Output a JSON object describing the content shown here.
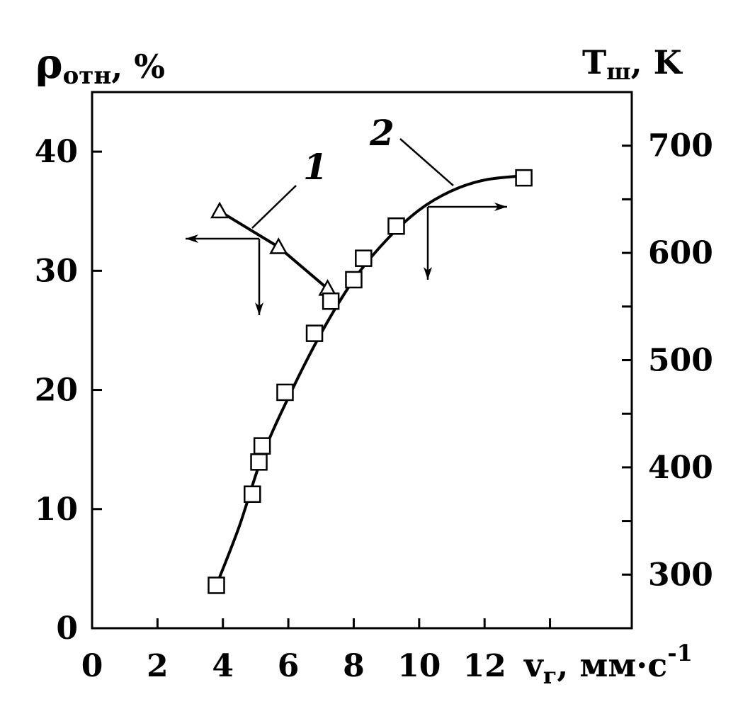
{
  "chart_data": {
    "type": "scatter",
    "left_axis": {
      "label_main": "ρ",
      "label_sub": "отн",
      "label_unit": ", %",
      "ticks": [
        0,
        10,
        20,
        30,
        40
      ],
      "tick_labels": [
        "0",
        "10",
        "20",
        "30",
        "40"
      ],
      "range": [
        0,
        45
      ]
    },
    "right_axis": {
      "label_main": "T",
      "label_sub": "ш",
      "label_unit": ", K",
      "ticks": [
        300,
        400,
        500,
        600,
        700
      ],
      "tick_labels": [
        "300",
        "400",
        "500",
        "600",
        "700"
      ],
      "minor_ticks": [
        350,
        450,
        550,
        650
      ],
      "range": [
        250,
        750
      ]
    },
    "x_axis": {
      "label_main": "v",
      "label_sub": "г",
      "label_unit": ", мм·с",
      "label_sup": "-1",
      "ticks": [
        0,
        2,
        4,
        6,
        8,
        10,
        12
      ],
      "tick_labels": [
        "0",
        "2",
        "4",
        "6",
        "8",
        "10",
        "12"
      ],
      "minor_ticks": [
        14
      ],
      "range": [
        0,
        16.5
      ]
    },
    "grid": false,
    "series": [
      {
        "name": "1",
        "axis": "left",
        "marker": "triangle",
        "x": [
          3.9,
          5.7,
          7.2
        ],
        "y": [
          35,
          32,
          28.5
        ]
      },
      {
        "name": "2",
        "axis": "right",
        "marker": "square",
        "x": [
          3.8,
          4.9,
          5.1,
          5.2,
          5.9,
          6.8,
          7.3,
          8.0,
          8.3,
          9.3,
          13.2
        ],
        "y": [
          290,
          375,
          405,
          420,
          470,
          525,
          555,
          575,
          595,
          625,
          670
        ],
        "fit_x": [
          3.8,
          4.5,
          5.2,
          6.0,
          7.0,
          8.0,
          9.0,
          10.0,
          11.0,
          12.0,
          13.2
        ],
        "fit_y": [
          290,
          345,
          410,
          465,
          525,
          575,
          612,
          640,
          658,
          668,
          672
        ]
      }
    ]
  }
}
